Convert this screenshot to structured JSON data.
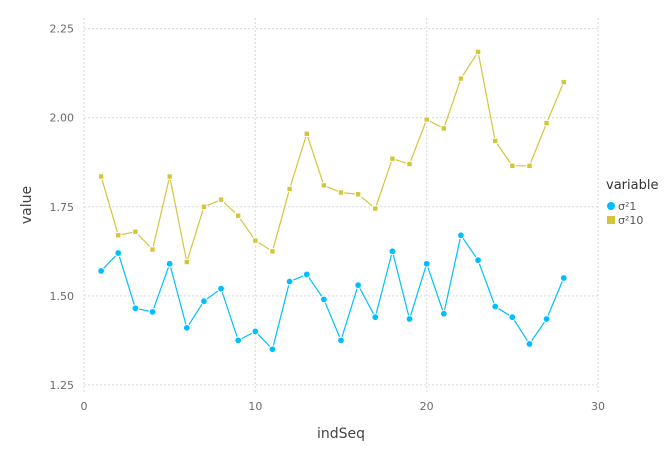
{
  "chart_data": {
    "type": "line",
    "title": "",
    "xlabel": "indSeq",
    "ylabel": "value",
    "xlim": [
      0,
      30
    ],
    "ylim": [
      1.23,
      2.28
    ],
    "x_ticks": [
      {
        "value": 0,
        "label": "0"
      },
      {
        "value": 10,
        "label": "10"
      },
      {
        "value": 20,
        "label": "20"
      },
      {
        "value": 30,
        "label": "30"
      }
    ],
    "y_ticks": [
      {
        "value": 1.25,
        "label": "1.25"
      },
      {
        "value": 1.5,
        "label": "1.50"
      },
      {
        "value": 1.75,
        "label": "1.75"
      },
      {
        "value": 2.0,
        "label": "2.00"
      },
      {
        "value": 2.25,
        "label": "2.25"
      }
    ],
    "grid": true,
    "legend": {
      "title": "variable",
      "position": "right"
    },
    "x": [
      1,
      2,
      3,
      4,
      5,
      6,
      7,
      8,
      9,
      10,
      11,
      12,
      13,
      14,
      15,
      16,
      17,
      18,
      19,
      20,
      21,
      22,
      23,
      24,
      25,
      26,
      27,
      28
    ],
    "series": [
      {
        "name": "σ²1",
        "color": "#00BFFF",
        "marker": "circle",
        "values": [
          1.57,
          1.62,
          1.465,
          1.455,
          1.59,
          1.41,
          1.485,
          1.52,
          1.375,
          1.4,
          1.35,
          1.54,
          1.56,
          1.49,
          1.375,
          1.53,
          1.44,
          1.625,
          1.435,
          1.59,
          1.45,
          1.67,
          1.6,
          1.47,
          1.44,
          1.365,
          1.435,
          1.55
        ]
      },
      {
        "name": "σ²10",
        "color": "#D4C53A",
        "marker": "square",
        "values": [
          1.835,
          1.67,
          1.68,
          1.63,
          1.835,
          1.595,
          1.75,
          1.77,
          1.725,
          1.655,
          1.625,
          1.8,
          1.955,
          1.81,
          1.79,
          1.785,
          1.745,
          1.885,
          1.87,
          1.995,
          1.97,
          2.11,
          2.185,
          1.935,
          1.865,
          1.865,
          1.985,
          2.1
        ]
      }
    ]
  }
}
